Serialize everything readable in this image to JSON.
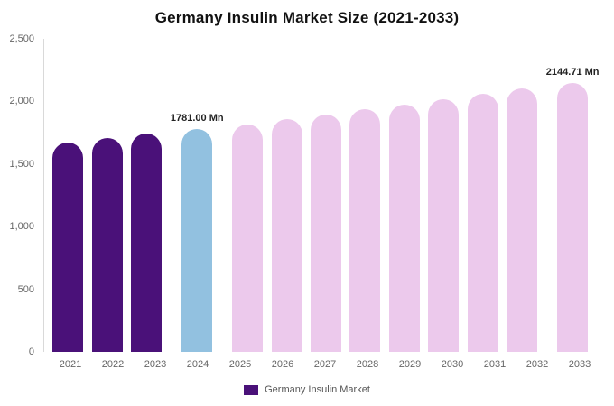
{
  "chart_data": {
    "type": "bar",
    "title": "Germany Insulin Market Size (2021-2033)",
    "categories": [
      "2021",
      "2022",
      "2023",
      "2024",
      "2025",
      "2026",
      "2027",
      "2028",
      "2029",
      "2030",
      "2031",
      "2032",
      "2033"
    ],
    "values": [
      1673,
      1708,
      1744,
      1781,
      1818,
      1856,
      1895,
      1935,
      1975,
      2017,
      2059,
      2102,
      2144.71
    ],
    "point_labels": [
      "",
      "",
      "",
      "1781.00 Mn",
      "",
      "",
      "",
      "",
      "",
      "",
      "",
      "",
      "2144.71 Mn"
    ],
    "bar_colors": [
      "#4a1179",
      "#4a1179",
      "#4a1179",
      "#92c1e0",
      "#ecc9ec",
      "#ecc9ec",
      "#ecc9ec",
      "#ecc9ec",
      "#ecc9ec",
      "#ecc9ec",
      "#ecc9ec",
      "#ecc9ec",
      "#ecc9ec"
    ],
    "ylim": [
      0,
      2500
    ],
    "yticks": [
      0,
      500,
      1000,
      1500,
      2000,
      2500
    ],
    "ytick_labels": [
      "0",
      "500",
      "1,000",
      "1,500",
      "2,000",
      "2,500"
    ],
    "xlabel": "",
    "ylabel": "",
    "grid": false,
    "legend_position": "bottom",
    "legend_label": "Germany Insulin Market",
    "legend_color": "#4a1179",
    "unit": "Mn"
  }
}
